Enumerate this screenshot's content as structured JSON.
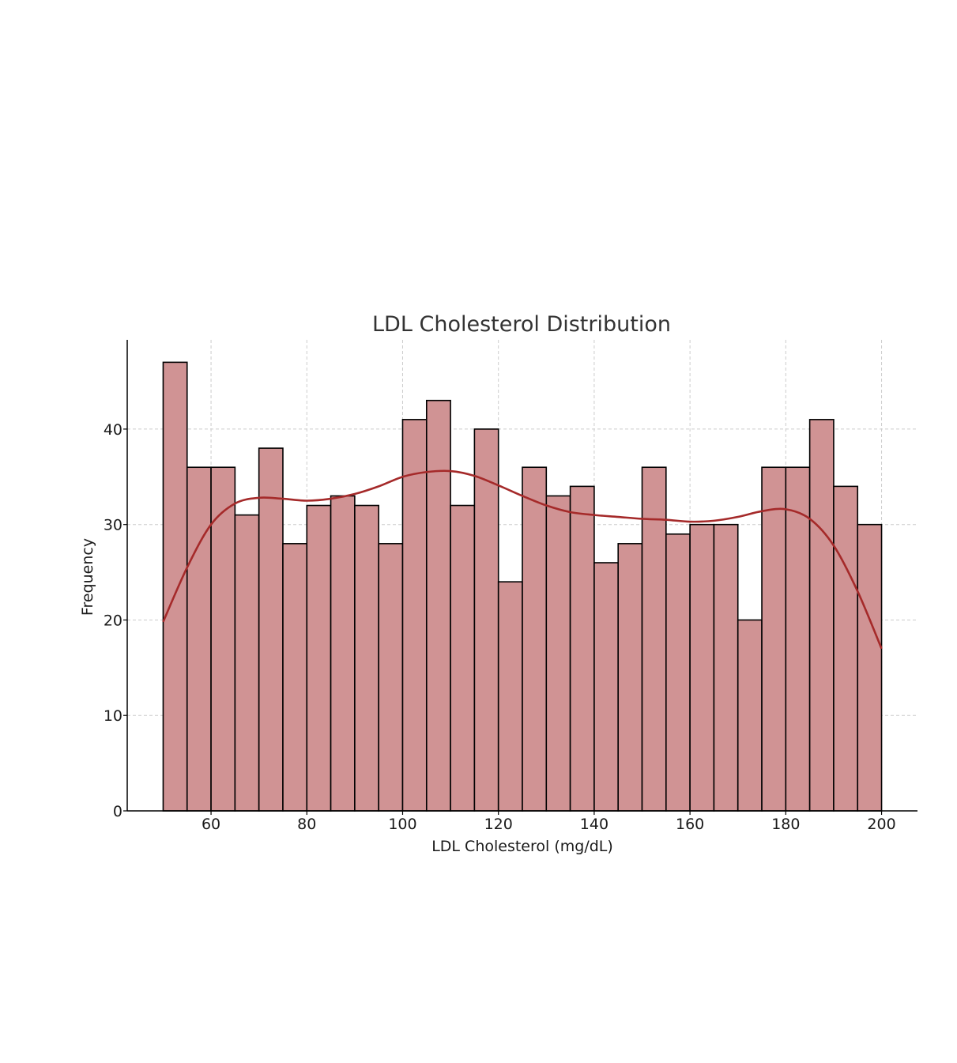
{
  "chart_data": {
    "type": "bar",
    "title": "LDL Cholesterol Distribution",
    "xlabel": "LDL Cholesterol (mg/dL)",
    "ylabel": "Frequency",
    "bin_start": 50,
    "bin_width": 5,
    "values": [
      47,
      36,
      36,
      31,
      38,
      28,
      32,
      33,
      32,
      28,
      41,
      43,
      32,
      40,
      24,
      36,
      33,
      34,
      26,
      28,
      36,
      29,
      30,
      30,
      20,
      36,
      36,
      41,
      34,
      30
    ],
    "kde": {
      "x": [
        50,
        55,
        60,
        65,
        70,
        75,
        80,
        85,
        90,
        95,
        100,
        105,
        110,
        115,
        120,
        125,
        130,
        135,
        140,
        145,
        150,
        155,
        160,
        165,
        170,
        175,
        180,
        185,
        190,
        195,
        200
      ],
      "y": [
        19.8,
        25.5,
        30.0,
        32.2,
        32.8,
        32.7,
        32.5,
        32.7,
        33.2,
        34.0,
        35.0,
        35.5,
        35.6,
        35.1,
        34.1,
        33.0,
        32.0,
        31.3,
        31.0,
        30.8,
        30.6,
        30.5,
        30.3,
        30.4,
        30.8,
        31.4,
        31.6,
        30.6,
        27.8,
        23.0,
        17.0
      ]
    },
    "xlim": [
      42.5,
      207.5
    ],
    "ylim": [
      0,
      49.35
    ],
    "xticks": [
      60,
      80,
      100,
      120,
      140,
      160,
      180,
      200
    ],
    "yticks": [
      0,
      10,
      20,
      30,
      40
    ],
    "grid": true,
    "colors": {
      "bar_fill": "#d09394",
      "bar_edge": "#000000",
      "kde_line": "#a52a2a",
      "grid": "#cccccc"
    }
  }
}
